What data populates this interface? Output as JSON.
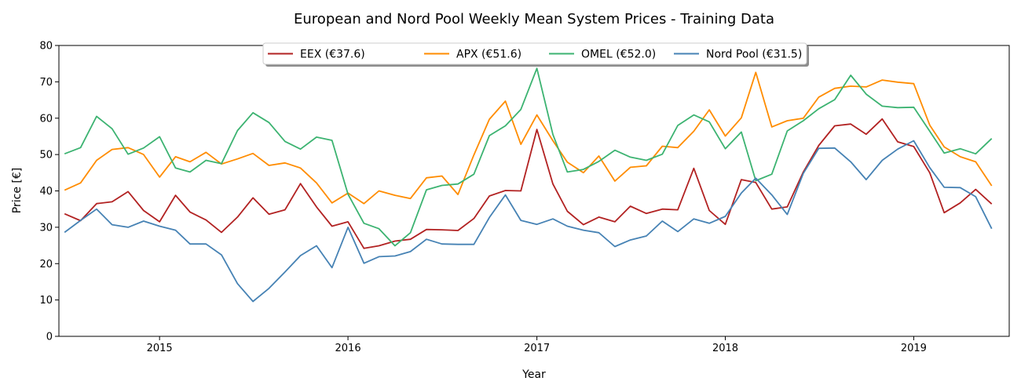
{
  "chart_data": {
    "type": "line",
    "title": "European and Nord Pool Weekly Mean System Prices - Training Data",
    "xlabel": "Year",
    "ylabel": "Price [€]",
    "ylim": [
      0,
      80
    ],
    "yticks": [
      0,
      10,
      20,
      30,
      40,
      50,
      60,
      70,
      80
    ],
    "xlim": [
      "2014-06-20",
      "2019-07-05"
    ],
    "xticks": [
      {
        "date": "2015-01-01",
        "label": "2015"
      },
      {
        "date": "2016-01-01",
        "label": "2016"
      },
      {
        "date": "2017-01-01",
        "label": "2017"
      },
      {
        "date": "2018-01-01",
        "label": "2018"
      },
      {
        "date": "2019-01-01",
        "label": "2019"
      }
    ],
    "grid": false,
    "legend_position": "top-center",
    "x": [
      "2014-07-01",
      "2014-08-01",
      "2014-09-01",
      "2014-10-01",
      "2014-11-01",
      "2014-12-01",
      "2015-01-01",
      "2015-02-01",
      "2015-03-01",
      "2015-04-01",
      "2015-05-01",
      "2015-06-01",
      "2015-07-01",
      "2015-08-01",
      "2015-09-01",
      "2015-10-01",
      "2015-11-01",
      "2015-12-01",
      "2016-01-01",
      "2016-02-01",
      "2016-03-01",
      "2016-04-01",
      "2016-05-01",
      "2016-06-01",
      "2016-07-01",
      "2016-08-01",
      "2016-09-01",
      "2016-10-01",
      "2016-11-01",
      "2016-12-01",
      "2017-01-01",
      "2017-02-01",
      "2017-03-01",
      "2017-04-01",
      "2017-05-01",
      "2017-06-01",
      "2017-07-01",
      "2017-08-01",
      "2017-09-01",
      "2017-10-01",
      "2017-11-01",
      "2017-12-01",
      "2018-01-01",
      "2018-02-01",
      "2018-03-01",
      "2018-04-01",
      "2018-05-01",
      "2018-06-01",
      "2018-07-01",
      "2018-08-01",
      "2018-09-01",
      "2018-10-01",
      "2018-11-01",
      "2018-12-01",
      "2019-01-01",
      "2019-02-01",
      "2019-03-01",
      "2019-04-01",
      "2019-05-01",
      "2019-06-01"
    ],
    "series": [
      {
        "name": "EEX (€37.6)",
        "color": "#b22222",
        "values": [
          33.7,
          31.8,
          36.5,
          37.0,
          39.8,
          34.6,
          31.5,
          38.8,
          34.2,
          32.0,
          28.6,
          32.8,
          38.1,
          33.6,
          34.8,
          42.0,
          35.6,
          30.3,
          31.5,
          24.2,
          24.9,
          26.2,
          26.7,
          29.4,
          29.3,
          29.1,
          32.4,
          38.6,
          40.1,
          40.0,
          56.9,
          41.9,
          34.4,
          30.7,
          32.8,
          31.5,
          35.8,
          33.8,
          35.0,
          34.8,
          46.2,
          34.6,
          30.8,
          43.1,
          42.3,
          35.0,
          35.6,
          45.2,
          52.5,
          57.9,
          58.4,
          55.6,
          59.8,
          53.5,
          52.2,
          45.0,
          34.0,
          36.7,
          40.4,
          36.4
        ]
      },
      {
        "name": "APX (€51.6)",
        "color": "#ff8c00",
        "values": [
          40.2,
          42.2,
          48.4,
          51.4,
          51.9,
          50.0,
          43.8,
          49.4,
          48.0,
          50.6,
          47.4,
          48.8,
          50.3,
          47.0,
          47.7,
          46.3,
          42.2,
          36.7,
          39.4,
          36.5,
          40.0,
          38.8,
          37.9,
          43.6,
          44.1,
          39.0,
          49.9,
          59.7,
          64.7,
          52.8,
          60.9,
          53.8,
          47.9,
          45.0,
          49.6,
          42.7,
          46.5,
          46.9,
          52.3,
          51.9,
          56.4,
          62.3,
          55.1,
          60.1,
          72.6,
          57.6,
          59.3,
          60.0,
          65.8,
          68.2,
          68.8,
          68.6,
          70.5,
          69.9,
          69.5,
          58.1,
          52.1,
          49.4,
          48.0,
          41.4
        ]
      },
      {
        "name": "OMEL (€52.0)",
        "color": "#3cb371",
        "values": [
          50.2,
          51.9,
          60.5,
          57.1,
          50.1,
          51.8,
          54.9,
          46.3,
          45.2,
          48.4,
          47.5,
          56.6,
          61.5,
          58.8,
          53.6,
          51.5,
          54.8,
          53.9,
          39.1,
          31.1,
          29.6,
          24.9,
          28.5,
          40.3,
          41.5,
          41.9,
          44.6,
          55.2,
          57.9,
          62.4,
          73.7,
          55.5,
          45.2,
          45.9,
          48.1,
          51.2,
          49.3,
          48.4,
          50.1,
          58.0,
          60.9,
          59.0,
          51.6,
          56.2,
          42.8,
          44.6,
          56.5,
          59.3,
          62.6,
          65.1,
          71.8,
          66.6,
          63.3,
          62.9,
          63.0,
          56.4,
          50.4,
          51.6,
          50.2,
          54.4
        ]
      },
      {
        "name": "Nord Pool (€31.5)",
        "color": "#4682b4",
        "values": [
          28.6,
          31.9,
          35.0,
          30.7,
          30.0,
          31.7,
          30.3,
          29.2,
          25.4,
          25.4,
          22.4,
          14.5,
          9.6,
          13.2,
          17.7,
          22.2,
          24.9,
          18.9,
          30.0,
          20.1,
          21.9,
          22.1,
          23.3,
          26.7,
          25.4,
          25.3,
          25.3,
          32.7,
          38.9,
          31.9,
          30.8,
          32.3,
          30.3,
          29.2,
          28.5,
          24.7,
          26.5,
          27.6,
          31.7,
          28.8,
          32.3,
          31.1,
          33.0,
          39.4,
          43.5,
          38.9,
          33.5,
          44.8,
          51.7,
          51.8,
          48.0,
          43.1,
          48.4,
          51.5,
          53.8,
          46.4,
          41.0,
          40.9,
          38.4,
          29.6
        ]
      }
    ]
  }
}
